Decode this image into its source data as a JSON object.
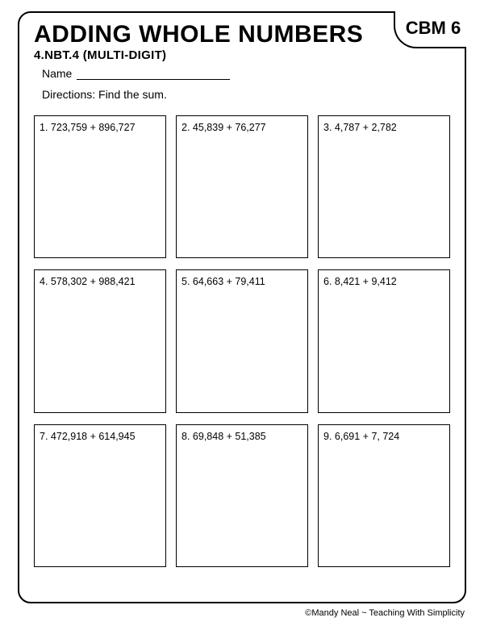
{
  "page": {
    "title": "ADDING WHOLE NUMBERS",
    "badge": "CBM 6",
    "subtitle": "4.NBT.4 (MULTI-DIGIT)",
    "name_label": "Name",
    "directions": "Directions:  Find the sum.",
    "footer": "©Mandy Neal ~ Teaching With Simplicity"
  },
  "problems": [
    {
      "n": "1.",
      "expr": "723,759 + 896,727"
    },
    {
      "n": "2.",
      "expr": " 45,839 + 76,277"
    },
    {
      "n": "3.",
      "expr": " 4,787 + 2,782"
    },
    {
      "n": "4.",
      "expr": " 578,302 + 988,421"
    },
    {
      "n": "5.",
      "expr": " 64,663 + 79,411"
    },
    {
      "n": "6.",
      "expr": " 8,421 + 9,412"
    },
    {
      "n": "7.",
      "expr": " 472,918 + 614,945"
    },
    {
      "n": "8.",
      "expr": " 69,848 + 51,385"
    },
    {
      "n": "9.",
      "expr": " 6,691 + 7, 724"
    }
  ],
  "style": {
    "border_color": "#000000",
    "background": "#ffffff",
    "title_fontsize": 30,
    "subtitle_fontsize": 15,
    "body_fontsize": 14,
    "cell_fontsize": 12.5,
    "grid_cols": 3,
    "grid_rows": 3,
    "border_radius": 16
  }
}
